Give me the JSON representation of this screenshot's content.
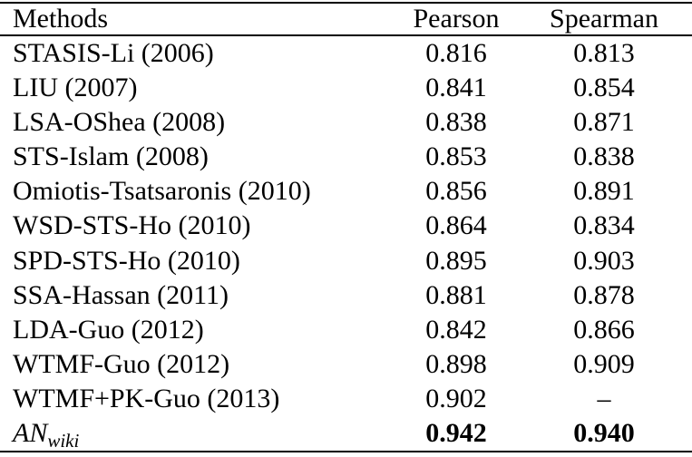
{
  "table": {
    "columns": [
      "Methods",
      "Pearson",
      "Spearman"
    ],
    "rows": [
      {
        "method": "STASIS-Li (2006)",
        "pearson": "0.816",
        "spearman": "0.813",
        "bold": false,
        "math": false,
        "method_sub": ""
      },
      {
        "method": "LIU (2007)",
        "pearson": "0.841",
        "spearman": "0.854",
        "bold": false,
        "math": false,
        "method_sub": ""
      },
      {
        "method": "LSA-OShea (2008)",
        "pearson": "0.838",
        "spearman": "0.871",
        "bold": false,
        "math": false,
        "method_sub": ""
      },
      {
        "method": "STS-Islam (2008)",
        "pearson": "0.853",
        "spearman": "0.838",
        "bold": false,
        "math": false,
        "method_sub": ""
      },
      {
        "method": "Omiotis-Tsatsaronis (2010)",
        "pearson": "0.856",
        "spearman": "0.891",
        "bold": false,
        "math": false,
        "method_sub": ""
      },
      {
        "method": "WSD-STS-Ho (2010)",
        "pearson": "0.864",
        "spearman": "0.834",
        "bold": false,
        "math": false,
        "method_sub": ""
      },
      {
        "method": "SPD-STS-Ho (2010)",
        "pearson": "0.895",
        "spearman": "0.903",
        "bold": false,
        "math": false,
        "method_sub": ""
      },
      {
        "method": "SSA-Hassan (2011)",
        "pearson": "0.881",
        "spearman": "0.878",
        "bold": false,
        "math": false,
        "method_sub": ""
      },
      {
        "method": "LDA-Guo (2012)",
        "pearson": "0.842",
        "spearman": "0.866",
        "bold": false,
        "math": false,
        "method_sub": ""
      },
      {
        "method": "WTMF-Guo (2012)",
        "pearson": "0.898",
        "spearman": "0.909",
        "bold": false,
        "math": false,
        "method_sub": ""
      },
      {
        "method": "WTMF+PK-Guo (2013)",
        "pearson": "0.902",
        "spearman": "–",
        "bold": false,
        "math": false,
        "method_sub": ""
      },
      {
        "method": "AN",
        "pearson": "0.942",
        "spearman": "0.940",
        "bold": true,
        "math": true,
        "method_sub": "wiki"
      }
    ],
    "colors": {
      "text": "#000000",
      "background": "#ffffff",
      "rule": "#000000"
    }
  }
}
